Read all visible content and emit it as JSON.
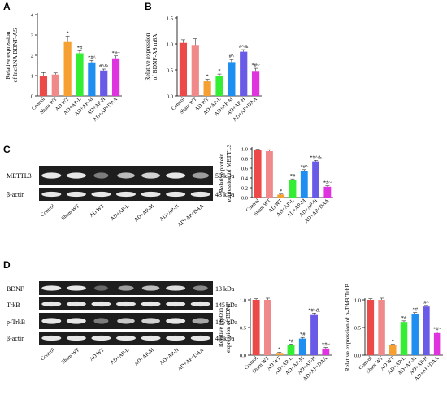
{
  "panels": {
    "a": "A",
    "b": "B",
    "c": "C",
    "d": "D"
  },
  "colors": [
    "#ec4949",
    "#f08a8a",
    "#f5a030",
    "#33ee33",
    "#1e8ff0",
    "#6a5ae8",
    "#e033e0"
  ],
  "blotC": {
    "labels": [
      "METTL3",
      "β-actin"
    ],
    "sizes": [
      "50 kDa",
      "43 kDa"
    ],
    "lanes": [
      "Control",
      "Sham WT",
      "AD WT",
      "AD+AP-L",
      "AD+AP-M",
      "AD+AP-H",
      "AD+AP+DAA"
    ]
  },
  "blotD": {
    "labels": [
      "BDNF",
      "TrkB",
      "p-TrkB",
      "β-actin"
    ],
    "sizes": [
      "13 kDa",
      "145 kDa",
      "145 kDa",
      "43 kDa"
    ],
    "lanes": [
      "Control",
      "Sham WT",
      "AD WT",
      "AD+AP-L",
      "AD+AP-M",
      "AD+AP-H",
      "AD+AP+DAA"
    ]
  },
  "chart_data": [
    {
      "panel": "A",
      "type": "bar",
      "ylabel": [
        "Relative expression",
        "of lncRNA BDNF-AS"
      ],
      "ylim": [
        0,
        4
      ],
      "yticks": [
        "0",
        "1",
        "2",
        "3",
        "4"
      ],
      "categories": [
        "Control",
        "Sham WT",
        "AD WT",
        "AD+AP-L",
        "AD+AP-M",
        "AD+AP-H",
        "AD+AP+DAA"
      ],
      "values": [
        1.0,
        1.05,
        2.65,
        2.1,
        1.65,
        1.25,
        1.85
      ],
      "errors": [
        0.15,
        0.08,
        0.3,
        0.12,
        0.1,
        0.07,
        0.12
      ],
      "annotations": [
        "",
        "",
        "*",
        "*#",
        "*#^",
        "#^&",
        "*#~"
      ]
    },
    {
      "panel": "B",
      "type": "bar",
      "ylabel": [
        "Relative expression",
        "of BDNF-AS m6A"
      ],
      "ylim": [
        0,
        1.5
      ],
      "yticks": [
        "0.0",
        "0.5",
        "1.0",
        "1.5"
      ],
      "categories": [
        "Control",
        "Sham WT",
        "AD WT",
        "AD+AP-L",
        "AD+AP-M",
        "AD+AP-H",
        "AD+AP+DAA"
      ],
      "values": [
        1.02,
        0.98,
        0.28,
        0.38,
        0.65,
        0.85,
        0.48
      ],
      "errors": [
        0.06,
        0.12,
        0.04,
        0.04,
        0.05,
        0.04,
        0.05
      ],
      "annotations": [
        "",
        "",
        "*",
        "*",
        "#^",
        "#^&",
        "*#~"
      ]
    },
    {
      "panel": "C",
      "type": "bar",
      "ylabel": [
        "Relative protein",
        "expression of METTL3"
      ],
      "ylim": [
        0,
        1.0
      ],
      "yticks": [
        "0.0",
        "0.2",
        "0.4",
        "0.6",
        "0.8",
        "1.0"
      ],
      "categories": [
        "Control",
        "Sham WT",
        "AD WT",
        "AD+AP-L",
        "AD+AP-M",
        "AD+AP-H",
        "AD+AP+DAA"
      ],
      "values": [
        0.97,
        0.95,
        0.06,
        0.36,
        0.55,
        0.74,
        0.22
      ],
      "errors": [
        0.02,
        0.03,
        0.01,
        0.02,
        0.02,
        0.02,
        0.02
      ],
      "annotations": [
        "",
        "",
        "*",
        "*#",
        "*#^",
        "*#^&",
        "*#~"
      ]
    },
    {
      "panel": "D1",
      "type": "bar",
      "ylabel": [
        "Relative protein",
        "expression of BDNF"
      ],
      "ylim": [
        0,
        1.0
      ],
      "yticks": [
        "0.0",
        "0.5",
        "1.0"
      ],
      "categories": [
        "Control",
        "Sham WT",
        "AD WT",
        "AD+AP-L",
        "AD+AP-M",
        "AD+AP-H",
        "AD+AP+DAA"
      ],
      "values": [
        1.0,
        1.0,
        0.04,
        0.18,
        0.3,
        0.74,
        0.12
      ],
      "errors": [
        0.02,
        0.03,
        0.01,
        0.02,
        0.02,
        0.02,
        0.02
      ],
      "annotations": [
        "",
        "",
        "*",
        "*#",
        "*#",
        "*#^&",
        "*#~"
      ]
    },
    {
      "panel": "D2",
      "type": "bar",
      "ylabel": [
        "Relative expression of p-TrkB/TrkB"
      ],
      "ylim": [
        0,
        1.0
      ],
      "yticks": [
        "0.0",
        "0.5",
        "1.0"
      ],
      "categories": [
        "Control",
        "Sham WT",
        "AD WT",
        "AD+AP-L",
        "AD+AP-M",
        "AD+AP-H",
        "AD+AP+DAA"
      ],
      "values": [
        1.0,
        1.0,
        0.18,
        0.6,
        0.75,
        0.88,
        0.4
      ],
      "errors": [
        0.02,
        0.03,
        0.02,
        0.02,
        0.02,
        0.02,
        0.02
      ],
      "annotations": [
        "",
        "",
        "*",
        "*#",
        "*#",
        "#^",
        "*#~"
      ]
    }
  ]
}
